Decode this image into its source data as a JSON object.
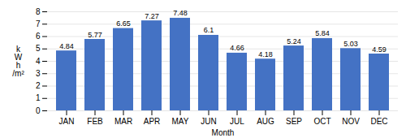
{
  "chart_data": {
    "type": "bar",
    "categories": [
      "JAN",
      "FEB",
      "MAR",
      "APR",
      "MAY",
      "JUN",
      "JUL",
      "AUG",
      "SEP",
      "OCT",
      "NOV",
      "DEC"
    ],
    "values": [
      4.84,
      5.77,
      6.65,
      7.27,
      7.48,
      6.1,
      4.66,
      4.18,
      5.24,
      5.84,
      5.03,
      4.59
    ],
    "color": "#4472C4",
    "xlabel": "Month",
    "ylabel": "k\nW\nh\n/m²",
    "ylim": [
      0,
      8
    ],
    "yticks": [
      0,
      1,
      2,
      3,
      4,
      5,
      6,
      7,
      8
    ],
    "grid": true,
    "data_labels": true
  }
}
